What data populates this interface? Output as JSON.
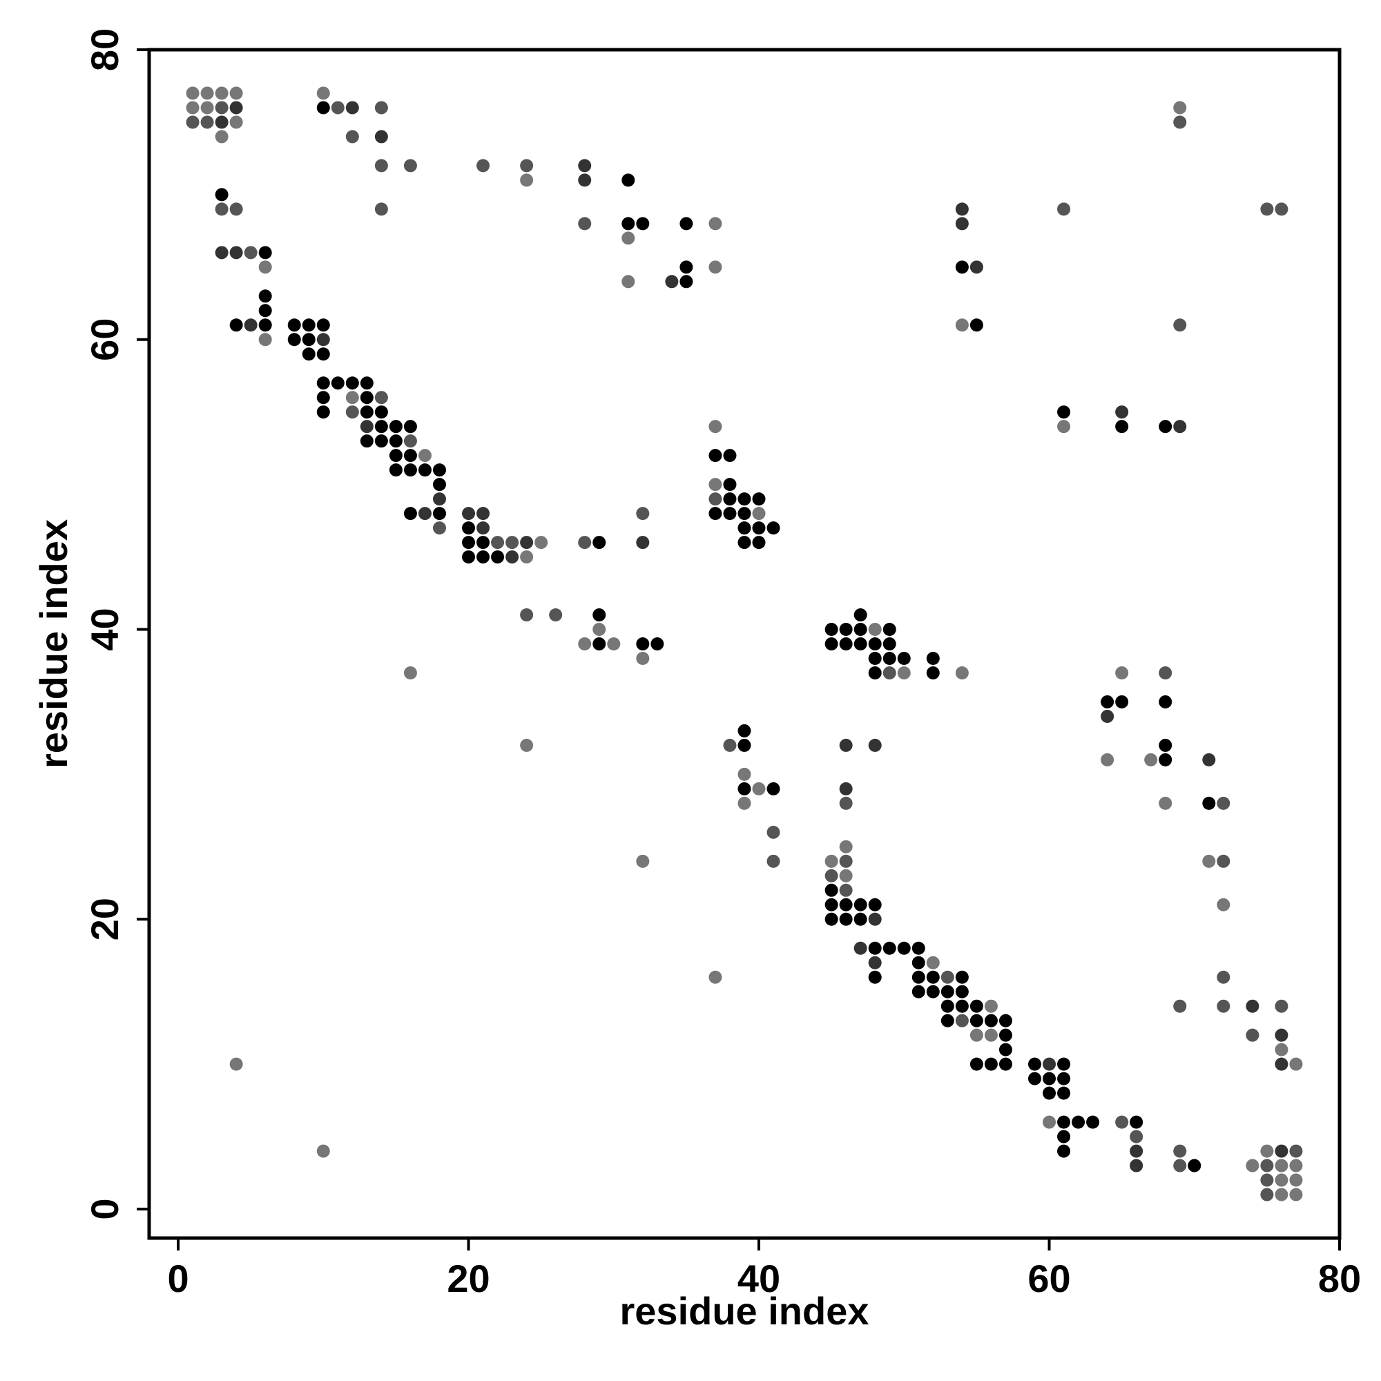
{
  "chart_data": {
    "type": "scatter",
    "title": "",
    "xlabel": "residue index",
    "ylabel": "residue index",
    "xlim": [
      -2,
      80
    ],
    "ylim": [
      -2,
      80
    ],
    "x_ticks": [
      "0",
      "20",
      "40",
      "60",
      "80"
    ],
    "y_ticks": [
      "0",
      "20",
      "40",
      "60",
      "80"
    ],
    "grid": false,
    "legend": "none",
    "marker_color_note": "grayscale shade encodes contact strength",
    "shade_colors": {
      "dark": "#000000",
      "mid": "#333333",
      "medium": "#555555",
      "light": "#777777"
    },
    "points": [
      [
        1,
        77,
        3
      ],
      [
        2,
        77,
        3
      ],
      [
        3,
        77,
        3
      ],
      [
        4,
        77,
        3
      ],
      [
        1,
        76,
        3
      ],
      [
        2,
        76,
        3
      ],
      [
        3,
        76,
        2
      ],
      [
        4,
        76,
        1
      ],
      [
        1,
        75,
        2
      ],
      [
        2,
        75,
        2
      ],
      [
        3,
        75,
        1
      ],
      [
        4,
        75,
        3
      ],
      [
        3,
        74,
        3
      ],
      [
        10,
        77,
        3
      ],
      [
        10,
        76,
        0
      ],
      [
        11,
        76,
        2
      ],
      [
        12,
        76,
        1
      ],
      [
        14,
        76,
        2
      ],
      [
        12,
        74,
        2
      ],
      [
        14,
        74,
        1
      ],
      [
        14,
        72,
        2
      ],
      [
        16,
        72,
        2
      ],
      [
        14,
        69,
        2
      ],
      [
        21,
        72,
        2
      ],
      [
        24,
        72,
        2
      ],
      [
        24,
        71,
        3
      ],
      [
        28,
        72,
        1
      ],
      [
        28,
        71,
        1
      ],
      [
        31,
        71,
        0
      ],
      [
        28,
        68,
        2
      ],
      [
        31,
        68,
        0
      ],
      [
        32,
        68,
        0
      ],
      [
        31,
        67,
        3
      ],
      [
        35,
        68,
        0
      ],
      [
        37,
        68,
        3
      ],
      [
        31,
        64,
        3
      ],
      [
        34,
        64,
        1
      ],
      [
        35,
        64,
        0
      ],
      [
        35,
        65,
        0
      ],
      [
        37,
        65,
        3
      ],
      [
        3,
        70,
        0
      ],
      [
        3,
        69,
        2
      ],
      [
        4,
        69,
        2
      ],
      [
        3,
        66,
        1
      ],
      [
        4,
        66,
        1
      ],
      [
        5,
        66,
        2
      ],
      [
        6,
        66,
        0
      ],
      [
        6,
        65,
        3
      ],
      [
        6,
        63,
        0
      ],
      [
        6,
        62,
        0
      ],
      [
        4,
        61,
        0
      ],
      [
        5,
        61,
        1
      ],
      [
        6,
        61,
        0
      ],
      [
        6,
        60,
        3
      ],
      [
        8,
        61,
        0
      ],
      [
        9,
        61,
        0
      ],
      [
        10,
        61,
        0
      ],
      [
        8,
        60,
        0
      ],
      [
        9,
        60,
        0
      ],
      [
        10,
        60,
        1
      ],
      [
        9,
        59,
        0
      ],
      [
        10,
        59,
        0
      ],
      [
        10,
        57,
        0
      ],
      [
        11,
        57,
        0
      ],
      [
        12,
        57,
        0
      ],
      [
        13,
        57,
        0
      ],
      [
        10,
        56,
        0
      ],
      [
        12,
        56,
        3
      ],
      [
        13,
        56,
        0
      ],
      [
        14,
        56,
        2
      ],
      [
        10,
        55,
        0
      ],
      [
        12,
        55,
        2
      ],
      [
        13,
        55,
        0
      ],
      [
        14,
        55,
        0
      ],
      [
        13,
        54,
        1
      ],
      [
        14,
        54,
        0
      ],
      [
        15,
        54,
        0
      ],
      [
        16,
        54,
        0
      ],
      [
        13,
        53,
        0
      ],
      [
        14,
        53,
        0
      ],
      [
        15,
        53,
        0
      ],
      [
        16,
        53,
        2
      ],
      [
        15,
        52,
        0
      ],
      [
        16,
        52,
        0
      ],
      [
        17,
        52,
        3
      ],
      [
        15,
        51,
        0
      ],
      [
        16,
        51,
        0
      ],
      [
        17,
        51,
        0
      ],
      [
        18,
        51,
        0
      ],
      [
        18,
        50,
        0
      ],
      [
        18,
        49,
        1
      ],
      [
        16,
        48,
        0
      ],
      [
        17,
        48,
        1
      ],
      [
        18,
        48,
        0
      ],
      [
        18,
        47,
        2
      ],
      [
        20,
        48,
        1
      ],
      [
        21,
        48,
        1
      ],
      [
        20,
        47,
        0
      ],
      [
        21,
        47,
        1
      ],
      [
        20,
        46,
        0
      ],
      [
        21,
        46,
        0
      ],
      [
        22,
        46,
        2
      ],
      [
        23,
        46,
        2
      ],
      [
        24,
        46,
        1
      ],
      [
        25,
        46,
        3
      ],
      [
        20,
        45,
        0
      ],
      [
        21,
        45,
        0
      ],
      [
        22,
        45,
        0
      ],
      [
        23,
        45,
        1
      ],
      [
        24,
        45,
        3
      ],
      [
        28,
        46,
        2
      ],
      [
        29,
        46,
        0
      ],
      [
        32,
        48,
        2
      ],
      [
        32,
        46,
        1
      ],
      [
        24,
        41,
        2
      ],
      [
        26,
        41,
        2
      ],
      [
        29,
        41,
        0
      ],
      [
        29,
        40,
        3
      ],
      [
        28,
        39,
        3
      ],
      [
        29,
        39,
        0
      ],
      [
        30,
        39,
        3
      ],
      [
        32,
        39,
        0
      ],
      [
        33,
        39,
        0
      ],
      [
        32,
        38,
        3
      ],
      [
        16,
        37,
        3
      ],
      [
        24,
        32,
        3
      ],
      [
        32,
        24,
        3
      ],
      [
        37,
        16,
        3
      ],
      [
        4,
        10,
        3
      ],
      [
        10,
        4,
        3
      ],
      [
        37,
        54,
        3
      ],
      [
        37,
        52,
        0
      ],
      [
        38,
        52,
        0
      ],
      [
        37,
        50,
        3
      ],
      [
        38,
        50,
        0
      ],
      [
        37,
        49,
        2
      ],
      [
        38,
        49,
        0
      ],
      [
        39,
        49,
        0
      ],
      [
        40,
        49,
        0
      ],
      [
        37,
        48,
        0
      ],
      [
        38,
        48,
        0
      ],
      [
        39,
        48,
        0
      ],
      [
        40,
        48,
        3
      ],
      [
        39,
        47,
        0
      ],
      [
        40,
        47,
        0
      ],
      [
        41,
        47,
        0
      ],
      [
        39,
        46,
        0
      ],
      [
        40,
        46,
        0
      ],
      [
        54,
        69,
        1
      ],
      [
        54,
        68,
        1
      ],
      [
        54,
        65,
        0
      ],
      [
        55,
        65,
        1
      ],
      [
        54,
        61,
        3
      ],
      [
        55,
        61,
        0
      ],
      [
        61,
        69,
        2
      ],
      [
        69,
        76,
        3
      ],
      [
        69,
        75,
        2
      ],
      [
        75,
        69,
        2
      ],
      [
        76,
        69,
        2
      ],
      [
        69,
        61,
        2
      ],
      [
        61,
        55,
        0
      ],
      [
        61,
        54,
        3
      ],
      [
        65,
        55,
        1
      ],
      [
        65,
        54,
        0
      ],
      [
        68,
        54,
        0
      ],
      [
        69,
        54,
        1
      ],
      [
        47,
        41,
        0
      ],
      [
        45,
        40,
        0
      ],
      [
        46,
        40,
        0
      ],
      [
        47,
        40,
        0
      ],
      [
        48,
        40,
        3
      ],
      [
        49,
        40,
        0
      ],
      [
        45,
        39,
        0
      ],
      [
        46,
        39,
        0
      ],
      [
        47,
        39,
        0
      ],
      [
        48,
        39,
        0
      ],
      [
        49,
        39,
        0
      ],
      [
        48,
        38,
        0
      ],
      [
        49,
        38,
        0
      ],
      [
        50,
        38,
        0
      ],
      [
        52,
        38,
        0
      ],
      [
        48,
        37,
        0
      ],
      [
        49,
        37,
        2
      ],
      [
        50,
        37,
        3
      ],
      [
        52,
        37,
        0
      ],
      [
        54,
        37,
        3
      ],
      [
        64,
        35,
        0
      ],
      [
        65,
        35,
        0
      ],
      [
        64,
        34,
        1
      ],
      [
        65,
        37,
        3
      ],
      [
        68,
        37,
        2
      ],
      [
        68,
        35,
        0
      ],
      [
        68,
        32,
        0
      ],
      [
        68,
        31,
        0
      ],
      [
        67,
        31,
        3
      ],
      [
        64,
        31,
        3
      ],
      [
        71,
        31,
        1
      ],
      [
        68,
        28,
        3
      ],
      [
        71,
        28,
        0
      ],
      [
        72,
        28,
        2
      ],
      [
        71,
        24,
        3
      ],
      [
        72,
        24,
        2
      ],
      [
        72,
        21,
        3
      ],
      [
        38,
        32,
        2
      ],
      [
        39,
        33,
        0
      ],
      [
        39,
        32,
        0
      ],
      [
        39,
        30,
        3
      ],
      [
        39,
        29,
        0
      ],
      [
        40,
        29,
        3
      ],
      [
        41,
        29,
        0
      ],
      [
        39,
        28,
        3
      ],
      [
        41,
        26,
        2
      ],
      [
        41,
        24,
        2
      ],
      [
        46,
        32,
        1
      ],
      [
        48,
        32,
        1
      ],
      [
        46,
        29,
        1
      ],
      [
        46,
        28,
        2
      ],
      [
        45,
        24,
        3
      ],
      [
        46,
        24,
        2
      ],
      [
        46,
        25,
        3
      ],
      [
        45,
        23,
        2
      ],
      [
        46,
        23,
        3
      ],
      [
        45,
        22,
        0
      ],
      [
        46,
        22,
        2
      ],
      [
        45,
        21,
        0
      ],
      [
        46,
        21,
        0
      ],
      [
        47,
        21,
        0
      ],
      [
        48,
        21,
        0
      ],
      [
        45,
        20,
        0
      ],
      [
        46,
        20,
        0
      ],
      [
        47,
        20,
        0
      ],
      [
        48,
        20,
        1
      ],
      [
        47,
        18,
        1
      ],
      [
        48,
        18,
        0
      ],
      [
        49,
        18,
        0
      ],
      [
        50,
        18,
        0
      ],
      [
        51,
        18,
        0
      ],
      [
        48,
        17,
        1
      ],
      [
        48,
        16,
        0
      ],
      [
        51,
        17,
        0
      ],
      [
        52,
        17,
        3
      ],
      [
        51,
        16,
        0
      ],
      [
        52,
        16,
        0
      ],
      [
        53,
        16,
        2
      ],
      [
        54,
        16,
        0
      ],
      [
        51,
        15,
        0
      ],
      [
        52,
        15,
        0
      ],
      [
        53,
        15,
        0
      ],
      [
        54,
        15,
        0
      ],
      [
        53,
        14,
        0
      ],
      [
        54,
        14,
        0
      ],
      [
        55,
        14,
        0
      ],
      [
        56,
        14,
        3
      ],
      [
        53,
        13,
        0
      ],
      [
        54,
        13,
        2
      ],
      [
        55,
        13,
        0
      ],
      [
        56,
        13,
        0
      ],
      [
        57,
        13,
        0
      ],
      [
        55,
        12,
        3
      ],
      [
        56,
        12,
        3
      ],
      [
        57,
        12,
        0
      ],
      [
        57,
        11,
        0
      ],
      [
        55,
        10,
        0
      ],
      [
        56,
        10,
        0
      ],
      [
        57,
        10,
        0
      ],
      [
        59,
        10,
        0
      ],
      [
        60,
        10,
        1
      ],
      [
        61,
        10,
        0
      ],
      [
        59,
        9,
        0
      ],
      [
        60,
        9,
        0
      ],
      [
        61,
        9,
        0
      ],
      [
        60,
        8,
        0
      ],
      [
        61,
        8,
        0
      ],
      [
        60,
        6,
        3
      ],
      [
        61,
        6,
        0
      ],
      [
        62,
        6,
        0
      ],
      [
        63,
        6,
        0
      ],
      [
        61,
        5,
        0
      ],
      [
        61,
        4,
        0
      ],
      [
        65,
        6,
        2
      ],
      [
        66,
        6,
        0
      ],
      [
        66,
        5,
        2
      ],
      [
        66,
        4,
        1
      ],
      [
        66,
        3,
        1
      ],
      [
        69,
        4,
        2
      ],
      [
        69,
        3,
        2
      ],
      [
        70,
        3,
        0
      ],
      [
        69,
        14,
        2
      ],
      [
        72,
        16,
        2
      ],
      [
        72,
        14,
        2
      ],
      [
        74,
        14,
        1
      ],
      [
        76,
        14,
        2
      ],
      [
        74,
        12,
        2
      ],
      [
        76,
        12,
        1
      ],
      [
        76,
        11,
        3
      ],
      [
        76,
        10,
        1
      ],
      [
        77,
        10,
        3
      ],
      [
        74,
        3,
        3
      ],
      [
        75,
        4,
        3
      ],
      [
        76,
        4,
        1
      ],
      [
        77,
        4,
        2
      ],
      [
        75,
        3,
        2
      ],
      [
        76,
        3,
        3
      ],
      [
        77,
        3,
        3
      ],
      [
        75,
        2,
        2
      ],
      [
        76,
        2,
        3
      ],
      [
        77,
        2,
        3
      ],
      [
        75,
        1,
        2
      ],
      [
        76,
        1,
        3
      ],
      [
        77,
        1,
        3
      ]
    ]
  }
}
